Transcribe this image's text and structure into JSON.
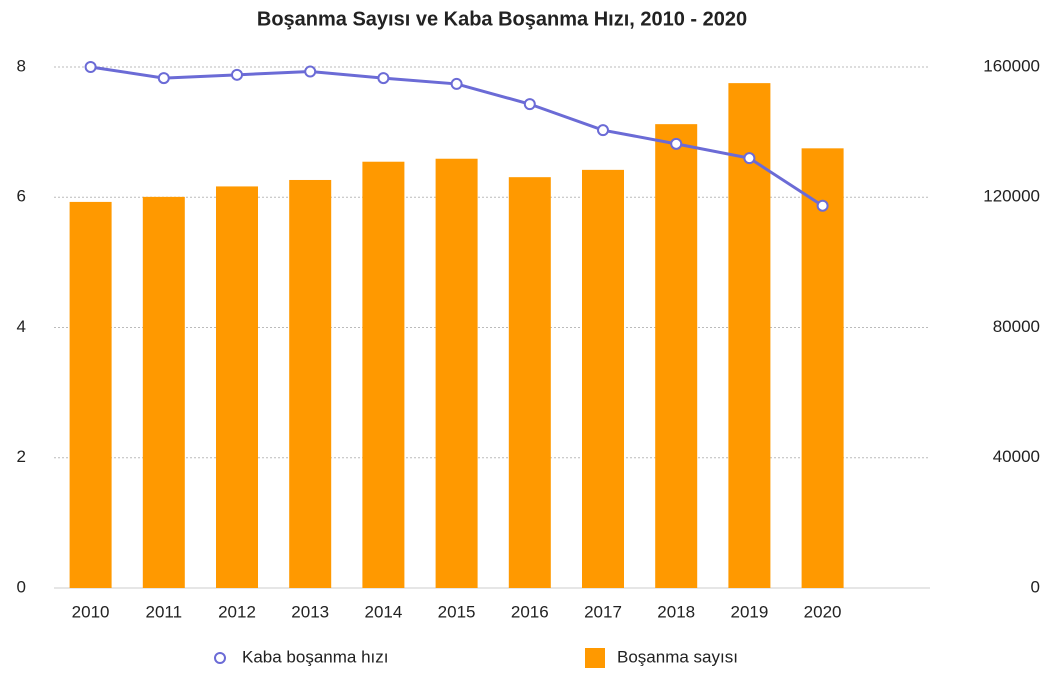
{
  "chart_data": {
    "type": "bar_line",
    "title": "Boşanma Sayısı ve Kaba Boşanma Hızı, 2010 - 2020",
    "categories": [
      "2010",
      "2011",
      "2012",
      "2013",
      "2014",
      "2015",
      "2016",
      "2017",
      "2018",
      "2019",
      "2020"
    ],
    "series": [
      {
        "name": "Kaba boşanma hızı",
        "type": "line",
        "axis": "y",
        "color": "#6b6bd6",
        "values": [
          8.0,
          7.83,
          7.88,
          7.93,
          7.83,
          7.74,
          7.43,
          7.03,
          6.82,
          6.6,
          5.87
        ]
      },
      {
        "name": "Boşanma sayısı",
        "type": "bar",
        "axis": "y2",
        "color": "#ff9900",
        "values": [
          118568,
          120117,
          123325,
          125305,
          130913,
          131830,
          126164,
          128411,
          142448,
          155047,
          135022
        ]
      }
    ],
    "ylim": [
      0,
      8
    ],
    "yticks": [
      0,
      2,
      4,
      6,
      8
    ],
    "y2lim": [
      0,
      160000
    ],
    "y2ticks": [
      0,
      40000,
      80000,
      120000,
      160000
    ],
    "grid": true,
    "legend": "bottom"
  }
}
